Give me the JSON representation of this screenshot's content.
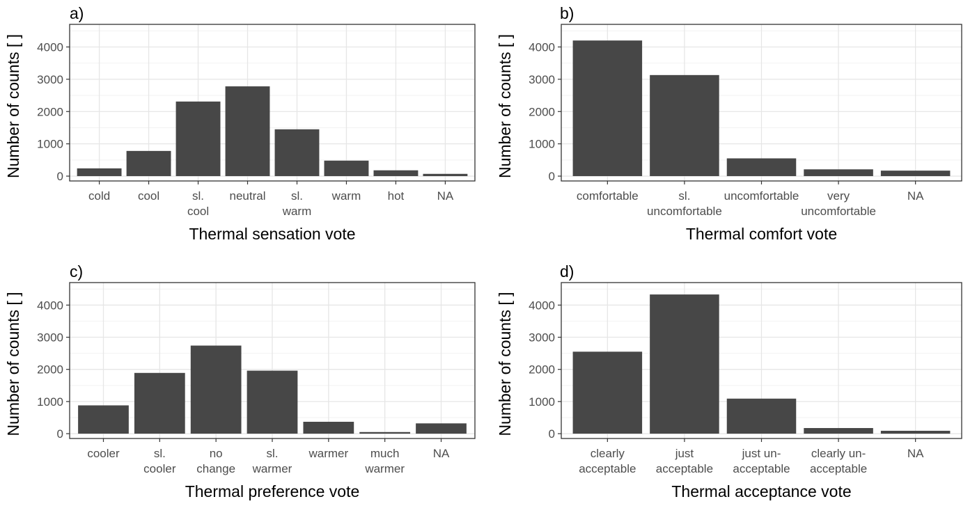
{
  "chart_data": [
    {
      "type": "bar",
      "panel_label": "a)",
      "xlabel": "Thermal sensation vote",
      "ylabel": "Number of counts [ ]",
      "categories": [
        "cold",
        "cool",
        "sl.\ncool",
        "neutral",
        "sl.\nwarm",
        "warm",
        "hot",
        "NA"
      ],
      "values": [
        240,
        780,
        2310,
        2780,
        1450,
        480,
        180,
        70
      ],
      "ylim": [
        -150,
        4700
      ],
      "yticks": [
        0,
        1000,
        2000,
        3000,
        4000
      ],
      "bar_color": "#474747",
      "grid": true
    },
    {
      "type": "bar",
      "panel_label": "b)",
      "xlabel": "Thermal comfort vote",
      "ylabel": "Number of counts [ ]",
      "categories": [
        "comfortable",
        "sl.\nuncomfortable",
        "uncomfortable",
        "very\nuncomfortable",
        "NA"
      ],
      "values": [
        4200,
        3130,
        550,
        210,
        170
      ],
      "ylim": [
        -150,
        4700
      ],
      "yticks": [
        0,
        1000,
        2000,
        3000,
        4000
      ],
      "bar_color": "#474747",
      "grid": true
    },
    {
      "type": "bar",
      "panel_label": "c)",
      "xlabel": "Thermal preference vote",
      "ylabel": "Number of counts [ ]",
      "categories": [
        "cooler",
        "sl.\ncooler",
        "no\nchange",
        "sl.\nwarmer",
        "warmer",
        "much\nwarmer",
        "NA"
      ],
      "values": [
        880,
        1890,
        2740,
        1960,
        370,
        50,
        320
      ],
      "ylim": [
        -150,
        4700
      ],
      "yticks": [
        0,
        1000,
        2000,
        3000,
        4000
      ],
      "bar_color": "#474747",
      "grid": true
    },
    {
      "type": "bar",
      "panel_label": "d)",
      "xlabel": "Thermal acceptance vote",
      "ylabel": "Number of counts [ ]",
      "categories": [
        "clearly\nacceptable",
        "just\nacceptable",
        "just un-\nacceptable",
        "clearly un-\nacceptable",
        "NA"
      ],
      "values": [
        2550,
        4330,
        1090,
        175,
        90
      ],
      "ylim": [
        -150,
        4700
      ],
      "yticks": [
        0,
        1000,
        2000,
        3000,
        4000
      ],
      "bar_color": "#474747",
      "grid": true
    }
  ]
}
